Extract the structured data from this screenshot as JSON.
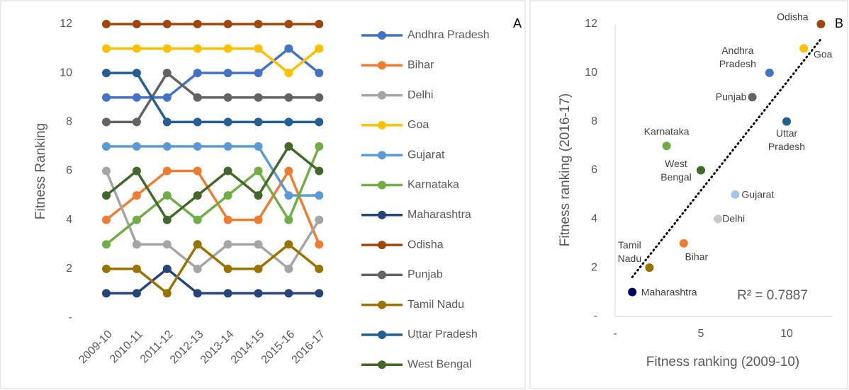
{
  "chart_data": [
    {
      "type": "line",
      "ylabel": "Fitness Ranking",
      "annotation": "A",
      "categories": [
        "2009-10",
        "2010-11",
        "2011-12",
        "2012-13",
        "2013-14",
        "2014-15",
        "2015-16",
        "2016-17"
      ],
      "ylim": [
        0,
        12
      ],
      "yticks": [
        {
          "value": 0,
          "label": "-"
        },
        2,
        4,
        6,
        8,
        10,
        12
      ],
      "series": [
        {
          "name": "Andhra Pradesh",
          "color": "#4472c4",
          "values": [
            9,
            9,
            9,
            10,
            10,
            10,
            11,
            10
          ]
        },
        {
          "name": "Bihar",
          "color": "#ed7d31",
          "values": [
            4,
            5,
            6,
            6,
            4,
            4,
            6,
            3
          ]
        },
        {
          "name": "Delhi",
          "color": "#a5a5a5",
          "values": [
            6,
            3,
            3,
            2,
            3,
            3,
            2,
            4
          ]
        },
        {
          "name": "Goa",
          "color": "#ffc000",
          "values": [
            11,
            11,
            11,
            11,
            11,
            11,
            10,
            11
          ]
        },
        {
          "name": "Gujarat",
          "color": "#5b9bd5",
          "values": [
            7,
            7,
            7,
            7,
            7,
            7,
            5,
            5
          ]
        },
        {
          "name": "Karnataka",
          "color": "#70ad47",
          "values": [
            3,
            4,
            5,
            4,
            5,
            6,
            4,
            7
          ]
        },
        {
          "name": "Maharashtra",
          "color": "#264478",
          "values": [
            1,
            1,
            2,
            1,
            1,
            1,
            1,
            1
          ]
        },
        {
          "name": "Odisha",
          "color": "#9e480e",
          "values": [
            12,
            12,
            12,
            12,
            12,
            12,
            12,
            12
          ]
        },
        {
          "name": "Punjab",
          "color": "#636363",
          "values": [
            8,
            8,
            10,
            9,
            9,
            9,
            9,
            9
          ]
        },
        {
          "name": "Tamil Nadu",
          "color": "#997300",
          "values": [
            2,
            2,
            1,
            3,
            2,
            2,
            3,
            2
          ]
        },
        {
          "name": "Uttar Pradesh",
          "color": "#255e91",
          "values": [
            10,
            10,
            8,
            8,
            8,
            8,
            8,
            8
          ]
        },
        {
          "name": "West Bengal",
          "color": "#43682b",
          "values": [
            5,
            6,
            4,
            5,
            6,
            5,
            7,
            6
          ]
        }
      ]
    },
    {
      "type": "scatter",
      "annotation": "B",
      "r2_label": "R² = 0.7887",
      "xlabel": "Fitness ranking (2009-10)",
      "ylabel": "Fitness ranking (2016-17)",
      "xlim": [
        0,
        12.7
      ],
      "xticks": [
        {
          "value": 0,
          "label": "-"
        },
        5,
        10
      ],
      "ylim": [
        0,
        12
      ],
      "yticks": [
        {
          "value": 0,
          "label": "-"
        },
        2,
        4,
        6,
        8,
        10,
        12
      ],
      "trendline": true,
      "series": [
        {
          "name": "Odisha",
          "color": "#9e480e",
          "x": [
            12
          ],
          "values": [
            12
          ]
        },
        {
          "name": "Goa",
          "color": "#ffc000",
          "x": [
            11
          ],
          "values": [
            11
          ]
        },
        {
          "name": "Andhra Pradesh",
          "color": "#4472c4",
          "x": [
            9
          ],
          "values": [
            10
          ]
        },
        {
          "name": "Punjab",
          "color": "#636363",
          "x": [
            8
          ],
          "values": [
            9
          ]
        },
        {
          "name": "Uttar Pradesh",
          "color": "#255e91",
          "x": [
            10
          ],
          "values": [
            8
          ]
        },
        {
          "name": "Karnataka",
          "color": "#70ad47",
          "x": [
            3
          ],
          "values": [
            7
          ]
        },
        {
          "name": "West Bengal",
          "color": "#43682b",
          "x": [
            5
          ],
          "values": [
            6
          ]
        },
        {
          "name": "Gujarat",
          "color": "#a9c4eb",
          "x": [
            7
          ],
          "values": [
            5
          ]
        },
        {
          "name": "Delhi",
          "color": "#c9c9c9",
          "x": [
            6
          ],
          "values": [
            4
          ]
        },
        {
          "name": "Bihar",
          "color": "#ed7d31",
          "x": [
            4
          ],
          "values": [
            3
          ]
        },
        {
          "name": "Tamil Nadu",
          "color": "#997300",
          "x": [
            2
          ],
          "values": [
            2
          ]
        },
        {
          "name": "Maharashtra",
          "color": "#000066",
          "x": [
            1
          ],
          "values": [
            1
          ]
        }
      ]
    }
  ]
}
